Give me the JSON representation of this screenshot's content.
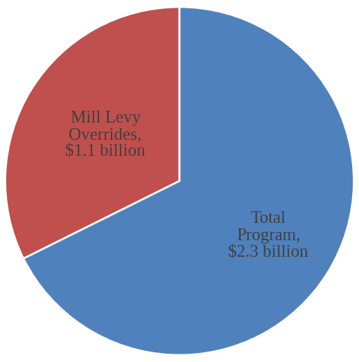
{
  "chart_data": {
    "type": "pie",
    "categories": [
      "Mill Levy Overrides, $1.1 billion",
      "Total Program, $2.3 billion"
    ],
    "values": [
      1.1,
      2.3
    ],
    "colors": [
      "#C0504D",
      "#4F81BD"
    ]
  }
}
